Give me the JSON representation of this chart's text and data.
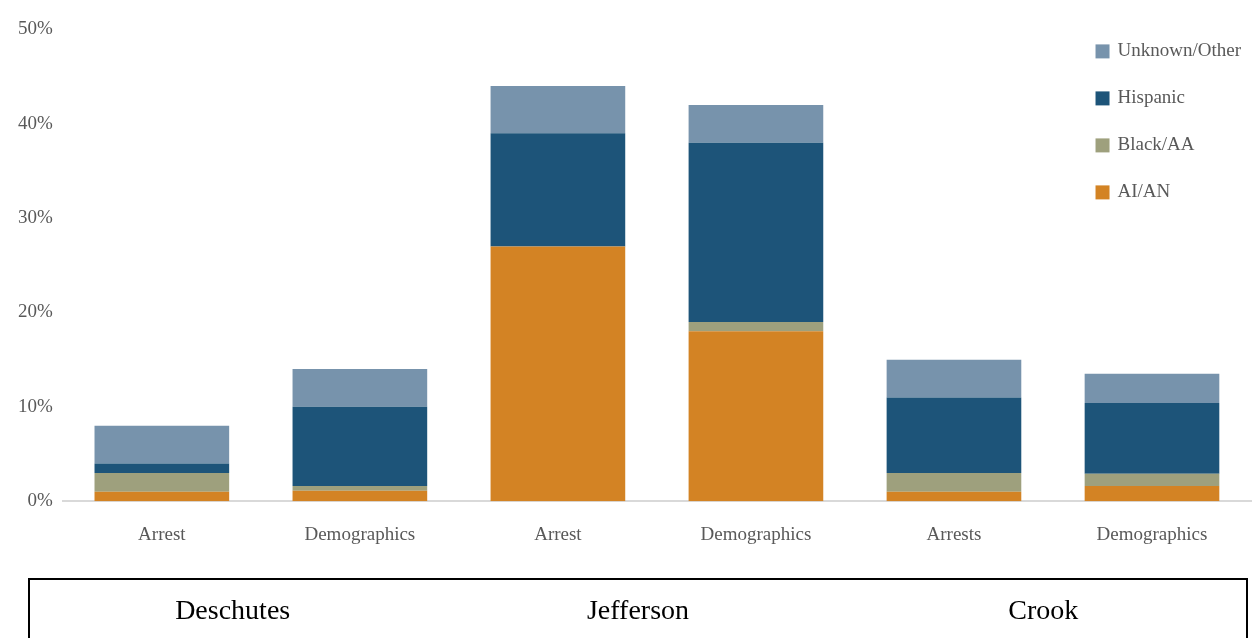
{
  "chart_data": {
    "type": "bar",
    "stacked": true,
    "categories": [
      "Arrest",
      "Demographics",
      "Arrest",
      "Demographics",
      "Arrests",
      "Demographics"
    ],
    "series": [
      {
        "name": "AI/AN",
        "color": "#d38324",
        "values": [
          1,
          1.1,
          27,
          18,
          1,
          1.6
        ]
      },
      {
        "name": "Black/AA",
        "color": "#9ea07d",
        "values": [
          2,
          0.5,
          0,
          1,
          2,
          1.3
        ]
      },
      {
        "name": "Hispanic",
        "color": "#1d5479",
        "values": [
          1,
          8.4,
          12,
          19,
          8,
          7.5
        ]
      },
      {
        "name": "Unknown/Other",
        "color": "#7793ac",
        "values": [
          4,
          4,
          5,
          4,
          4,
          3.1
        ]
      }
    ],
    "ylim": [
      0,
      50
    ],
    "yticks": [
      {
        "value": 0,
        "label": "0%"
      },
      {
        "value": 10,
        "label": "10%"
      },
      {
        "value": 20,
        "label": "20%"
      },
      {
        "value": 30,
        "label": "30%"
      },
      {
        "value": 40,
        "label": "40%"
      },
      {
        "value": 50,
        "label": "50%"
      }
    ],
    "grid": false,
    "legend": "top right",
    "annotations": [
      "Deschutes",
      "Jefferson",
      "Crook"
    ]
  }
}
